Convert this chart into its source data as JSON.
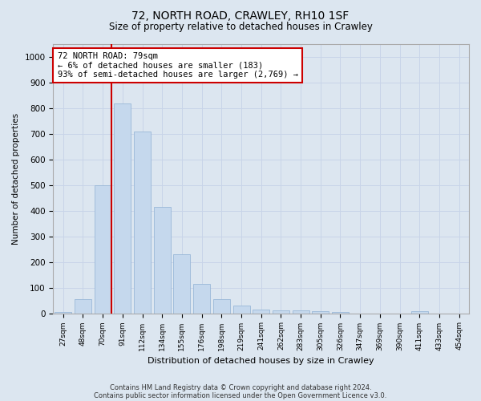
{
  "title1": "72, NORTH ROAD, CRAWLEY, RH10 1SF",
  "title2": "Size of property relative to detached houses in Crawley",
  "xlabel": "Distribution of detached houses by size in Crawley",
  "ylabel": "Number of detached properties",
  "categories": [
    "27sqm",
    "48sqm",
    "70sqm",
    "91sqm",
    "112sqm",
    "134sqm",
    "155sqm",
    "176sqm",
    "198sqm",
    "219sqm",
    "241sqm",
    "262sqm",
    "283sqm",
    "305sqm",
    "326sqm",
    "347sqm",
    "369sqm",
    "390sqm",
    "411sqm",
    "433sqm",
    "454sqm"
  ],
  "values": [
    5,
    55,
    500,
    820,
    710,
    415,
    230,
    115,
    55,
    30,
    15,
    10,
    10,
    8,
    5,
    0,
    0,
    0,
    8,
    0,
    0
  ],
  "bar_color": "#c5d8ed",
  "bar_edge_color": "#9ab8d8",
  "highlight_line_color": "#cc0000",
  "annotation_text": "72 NORTH ROAD: 79sqm\n← 6% of detached houses are smaller (183)\n93% of semi-detached houses are larger (2,769) →",
  "annotation_box_color": "#ffffff",
  "annotation_box_edge": "#cc0000",
  "ylim": [
    0,
    1050
  ],
  "yticks": [
    0,
    100,
    200,
    300,
    400,
    500,
    600,
    700,
    800,
    900,
    1000
  ],
  "grid_color": "#c8d4e8",
  "bg_color": "#dce6f0",
  "plot_bg_color": "#dce6f0",
  "footer1": "Contains HM Land Registry data © Crown copyright and database right 2024.",
  "footer2": "Contains public sector information licensed under the Open Government Licence v3.0."
}
